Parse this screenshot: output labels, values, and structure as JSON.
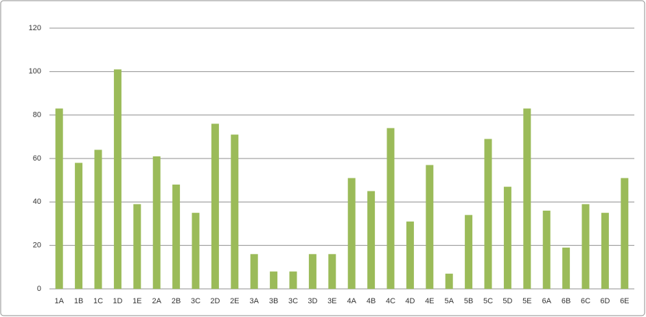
{
  "chart_data": {
    "type": "bar",
    "categories": [
      "1A",
      "1B",
      "1C",
      "1D",
      "1E",
      "2A",
      "2B",
      "3C",
      "2D",
      "2E",
      "3A",
      "3B",
      "3C",
      "3D",
      "3E",
      "4A",
      "4B",
      "4C",
      "4D",
      "4E",
      "5A",
      "5B",
      "5C",
      "5D",
      "5E",
      "6A",
      "6B",
      "6C",
      "6D",
      "6E"
    ],
    "values": [
      83,
      58,
      64,
      101,
      39,
      61,
      48,
      35,
      76,
      71,
      16,
      8,
      8,
      16,
      16,
      51,
      45,
      74,
      31,
      57,
      7,
      34,
      69,
      47,
      83,
      36,
      19,
      39,
      35,
      51
    ],
    "color": "#9bbb59",
    "ylim": [
      0,
      120
    ],
    "yticks": [
      0,
      20,
      40,
      60,
      80,
      100,
      120
    ],
    "grid": true
  }
}
